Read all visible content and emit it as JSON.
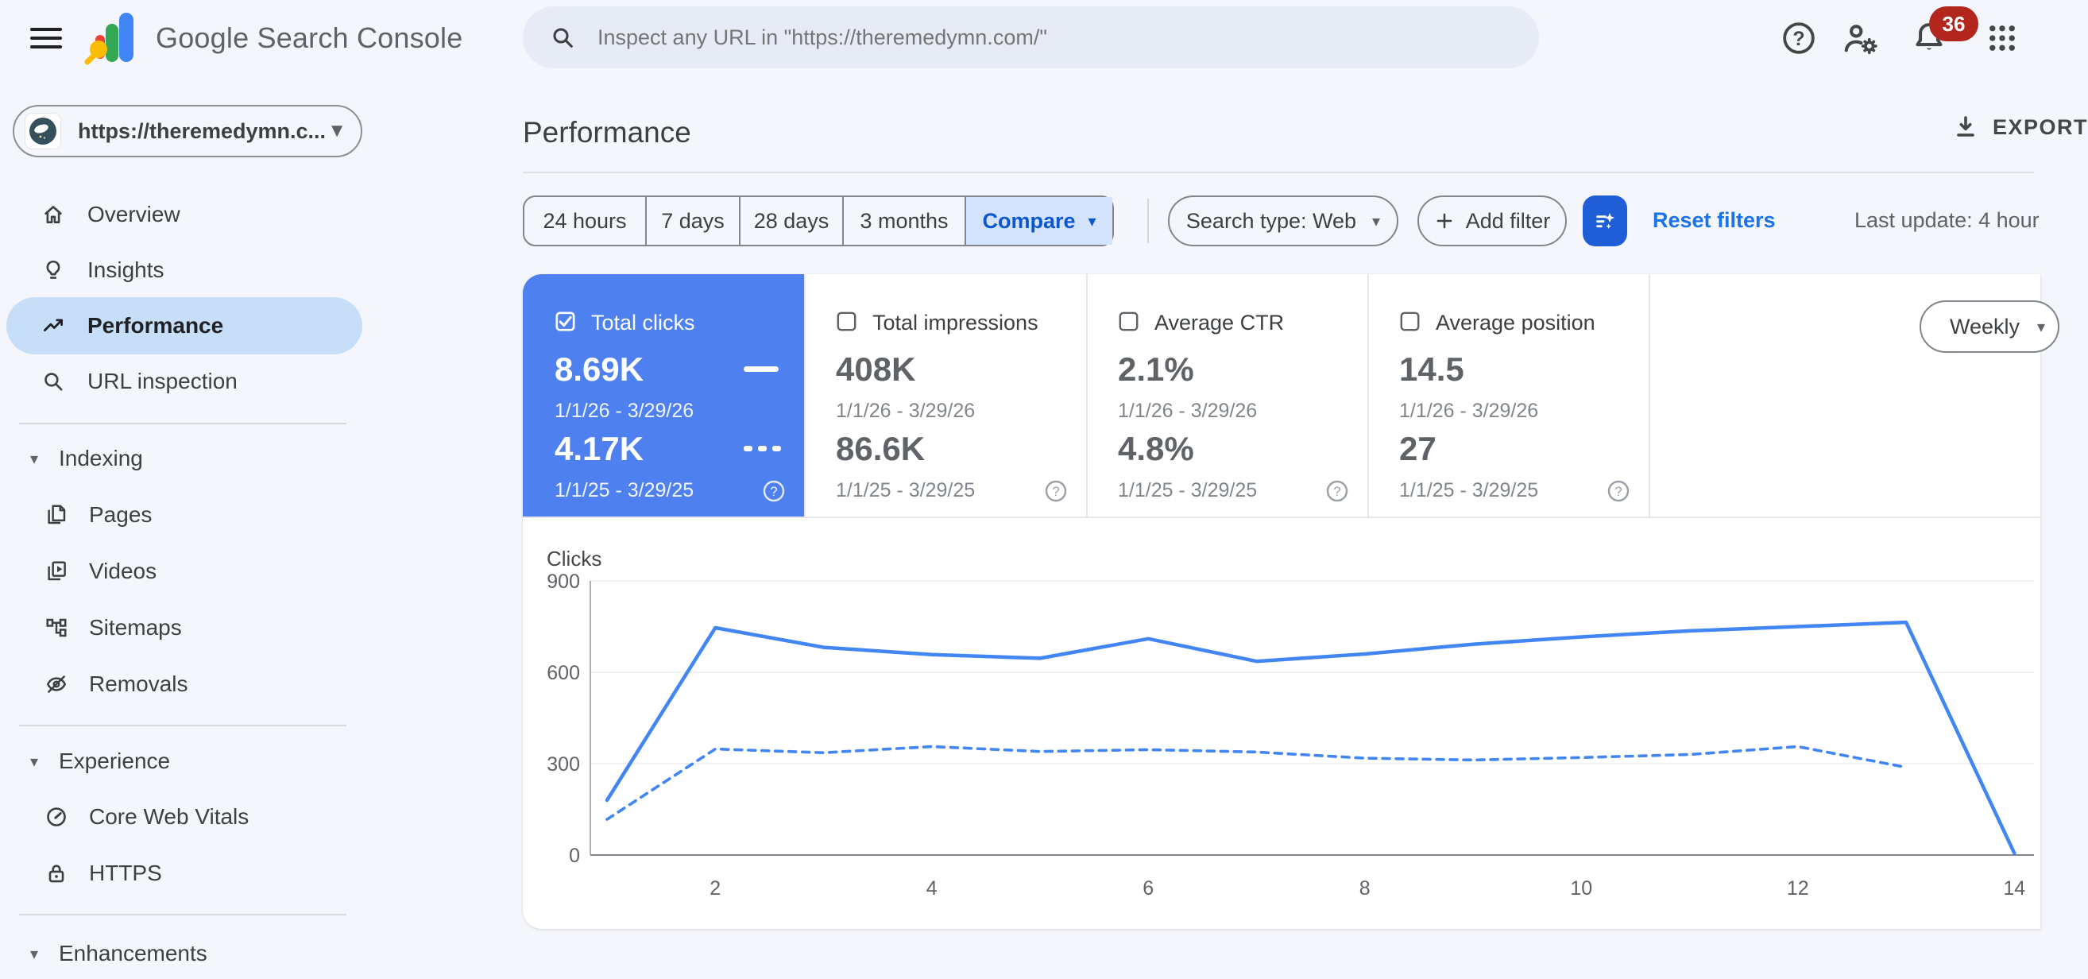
{
  "header": {
    "app_title": "Google Search Console",
    "search": {
      "placeholder": "Inspect any URL in \"https://theremedymn.com/\""
    },
    "notifications_badge": "36"
  },
  "sidebar": {
    "property": {
      "label": "https://theremedymn.c..."
    },
    "nav": [
      {
        "icon": "home-icon",
        "label": "Overview"
      },
      {
        "icon": "lightbulb-icon",
        "label": "Insights"
      },
      {
        "icon": "trending-up-icon",
        "label": "Performance",
        "selected": true
      },
      {
        "icon": "magnifier-icon",
        "label": "URL inspection"
      }
    ],
    "sections": [
      {
        "label": "Indexing",
        "items": [
          {
            "icon": "pages-icon",
            "label": "Pages"
          },
          {
            "icon": "video-icon",
            "label": "Videos"
          },
          {
            "icon": "sitemap-icon",
            "label": "Sitemaps"
          },
          {
            "icon": "eye-off-icon",
            "label": "Removals"
          }
        ]
      },
      {
        "label": "Experience",
        "items": [
          {
            "icon": "speedometer-icon",
            "label": "Core Web Vitals"
          },
          {
            "icon": "lock-icon",
            "label": "HTTPS"
          }
        ]
      },
      {
        "label": "Enhancements",
        "items": []
      }
    ]
  },
  "main": {
    "title": "Performance",
    "export_label": "EXPORT",
    "toolbar": {
      "date_tabs": [
        "24 hours",
        "7 days",
        "28 days",
        "3 months"
      ],
      "compare_label": "Compare",
      "search_type_label": "Search type: Web",
      "add_filter_label": "Add filter",
      "reset_filters_label": "Reset filters",
      "last_update_label": "Last update: 4 hour"
    },
    "view_dropdown": "Weekly",
    "cards": [
      {
        "label": "Total clicks",
        "checked": true,
        "value_current": "8.69K",
        "range_current": "1/1/26 - 3/29/26",
        "value_previous": "4.17K",
        "range_previous": "1/1/25 - 3/29/25"
      },
      {
        "label": "Total impressions",
        "checked": false,
        "value_current": "408K",
        "range_current": "1/1/26 - 3/29/26",
        "value_previous": "86.6K",
        "range_previous": "1/1/25 - 3/29/25"
      },
      {
        "label": "Average CTR",
        "checked": false,
        "value_current": "2.1%",
        "range_current": "1/1/26 - 3/29/26",
        "value_previous": "4.8%",
        "range_previous": "1/1/25 - 3/29/25"
      },
      {
        "label": "Average position",
        "checked": false,
        "value_current": "14.5",
        "range_current": "1/1/26 - 3/29/26",
        "value_previous": "27",
        "range_previous": "1/1/25 - 3/29/25"
      }
    ],
    "chart_data": {
      "type": "line",
      "title": "Clicks",
      "ylabel": "Clicks",
      "ylim": [
        0,
        900
      ],
      "y_ticks": [
        0,
        300,
        600,
        900
      ],
      "x_ticks": [
        2,
        4,
        6,
        8,
        10,
        12,
        14
      ],
      "x_unit": "week",
      "grid": true,
      "legend_position": "none",
      "series": [
        {
          "name": "Clicks 1/1/26 - 3/29/26",
          "style": "solid",
          "color": "#4285f4",
          "x": [
            1,
            2,
            3,
            4,
            5,
            6,
            7,
            8,
            9,
            10,
            11,
            12,
            13,
            14
          ],
          "values": [
            180,
            746,
            682,
            658,
            646,
            710,
            636,
            660,
            692,
            716,
            736,
            750,
            764,
            6
          ]
        },
        {
          "name": "Clicks 1/1/25 - 3/29/25",
          "style": "dashed",
          "color": "#4285f4",
          "x": [
            1,
            2,
            3,
            4,
            5,
            6,
            7,
            8,
            9,
            10,
            11,
            12,
            13
          ],
          "values": [
            117,
            348,
            336,
            356,
            340,
            346,
            338,
            318,
            312,
            320,
            330,
            356,
            288
          ]
        }
      ]
    },
    "colors": {
      "accent_blue": "#4285f4",
      "selected_card_blue": "#4e80f0",
      "compare_chip_blue": "#d3e3fd",
      "link_blue": "#1a73e8",
      "badge_red": "#b3261e"
    }
  }
}
